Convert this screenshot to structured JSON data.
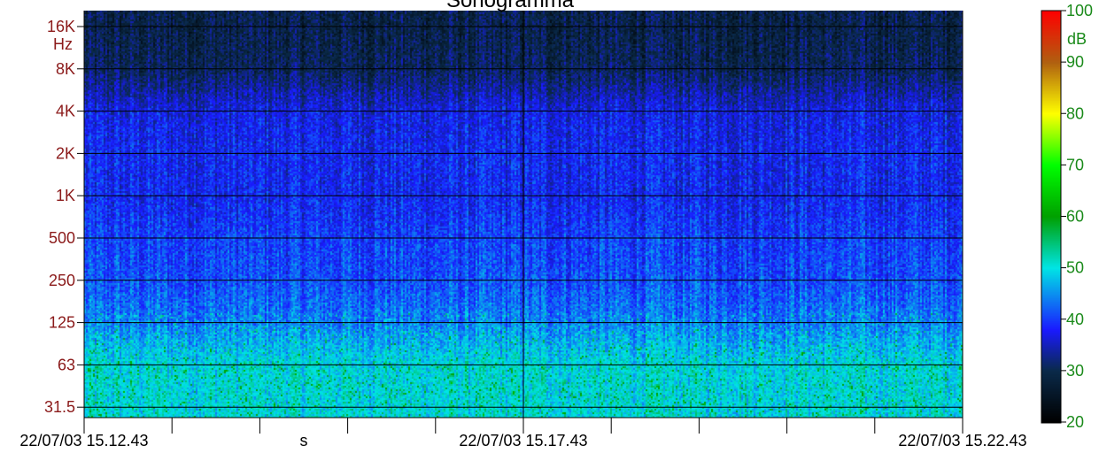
{
  "chart_data": {
    "type": "heatmap",
    "title": "Sonogramma",
    "y_axis": {
      "unit_label": "Hz",
      "scale": "log",
      "tick_labels": [
        "16K",
        "8K",
        "4K",
        "2K",
        "1K",
        "500",
        "250",
        "125",
        "63",
        "31.5"
      ],
      "tick_values": [
        16000,
        8000,
        4000,
        2000,
        1000,
        500,
        250,
        125,
        63,
        31.5
      ],
      "range": [
        25,
        20000
      ]
    },
    "x_axis": {
      "unit_label": "s",
      "tick_labels": [
        "22/07/03 15.12.43",
        "22/07/03 15.17.43",
        "22/07/03 15.22.43"
      ],
      "tick_times": [
        "15.12.43",
        "15.17.43",
        "15.22.43"
      ],
      "minor_ticks": [
        "15.13.43",
        "15.14.43",
        "15.15.43",
        "15.16.43",
        "15.18.43",
        "15.19.43",
        "15.20.43",
        "15.21.43"
      ],
      "range": [
        "15.12.43",
        "15.22.43"
      ]
    },
    "colorbar": {
      "unit_label": "dB",
      "tick_labels": [
        "100",
        "90",
        "80",
        "70",
        "60",
        "50",
        "40",
        "30",
        "20"
      ],
      "range": [
        20,
        100
      ],
      "colors": [
        "#000000",
        "#0a2a4a",
        "#1a1aff",
        "#00e5e5",
        "#00a000",
        "#00ff00",
        "#ffff00",
        "#b06010",
        "#ff0000"
      ]
    },
    "bands": [
      {
        "freq": "16K",
        "level_db": 29
      },
      {
        "freq": "8K",
        "level_db": 30
      },
      {
        "freq": "4K",
        "level_db": 37
      },
      {
        "freq": "2K",
        "level_db": 38
      },
      {
        "freq": "1K",
        "level_db": 38
      },
      {
        "freq": "500",
        "level_db": 40
      },
      {
        "freq": "250",
        "level_db": 41
      },
      {
        "freq": "125",
        "level_db": 44
      },
      {
        "freq": "63",
        "level_db": 50
      },
      {
        "freq": "31.5",
        "level_db": 50
      }
    ],
    "grid": true
  }
}
